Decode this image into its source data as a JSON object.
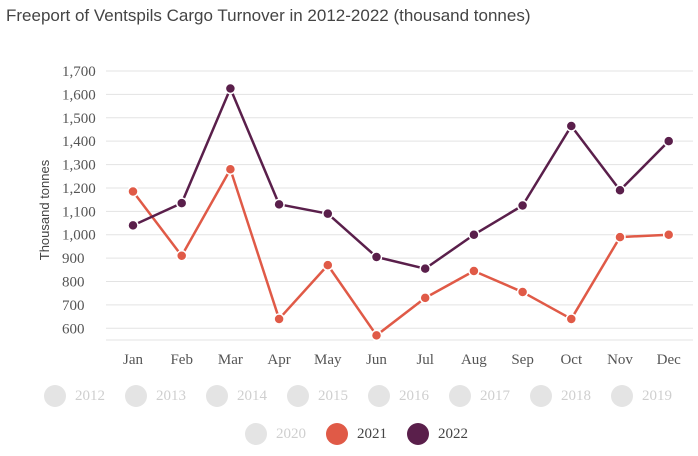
{
  "title": "Freeport of Ventspils Cargo Turnover in 2012-2022 (thousand tonnes)",
  "chart_data": {
    "type": "line",
    "title": "Freeport of Ventspils Cargo Turnover in 2012-2022 (thousand tonnes)",
    "xlabel": "",
    "ylabel": "Thousand tonnes",
    "categories": [
      "Jan",
      "Feb",
      "Mar",
      "Apr",
      "May",
      "Jun",
      "Jul",
      "Aug",
      "Sep",
      "Oct",
      "Nov",
      "Dec"
    ],
    "ylim": [
      600,
      1700
    ],
    "yticks": [
      600,
      700,
      800,
      900,
      1000,
      1100,
      1200,
      1300,
      1400,
      1500,
      1600,
      1700
    ],
    "ytick_labels": [
      "600",
      "700",
      "800",
      "900",
      "1,000",
      "1,100",
      "1,200",
      "1,300",
      "1,400",
      "1,500",
      "1,600",
      "1,700"
    ],
    "grid": "horizontal",
    "series": [
      {
        "name": "2021",
        "color": "#e05a47",
        "values": [
          1185,
          910,
          1280,
          640,
          870,
          570,
          730,
          845,
          755,
          640,
          990,
          1000
        ]
      },
      {
        "name": "2022",
        "color": "#5a1f4b",
        "values": [
          1040,
          1135,
          1625,
          1130,
          1090,
          905,
          855,
          1000,
          1125,
          1465,
          1190,
          1400
        ]
      }
    ],
    "legend": {
      "position": "bottom",
      "items": [
        {
          "label": "2012",
          "active": false
        },
        {
          "label": "2013",
          "active": false
        },
        {
          "label": "2014",
          "active": false
        },
        {
          "label": "2015",
          "active": false
        },
        {
          "label": "2016",
          "active": false
        },
        {
          "label": "2017",
          "active": false
        },
        {
          "label": "2018",
          "active": false
        },
        {
          "label": "2019",
          "active": false
        },
        {
          "label": "2020",
          "active": false
        },
        {
          "label": "2021",
          "active": true,
          "color": "#e05a47"
        },
        {
          "label": "2022",
          "active": true,
          "color": "#5a1f4b"
        }
      ],
      "inactive_color": "#e4e4e4"
    }
  }
}
